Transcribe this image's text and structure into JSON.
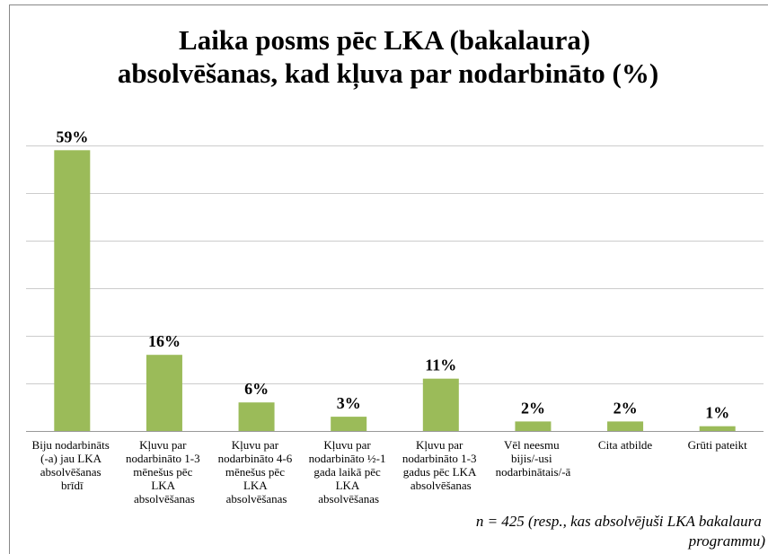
{
  "chart_data": {
    "type": "bar",
    "title": "Laika posms pēc LKA (bakalaura)\nabsolvēšanas, kad kļuva par nodarbināto (%)",
    "categories": [
      "Biju nodarbināts\n(-a) jau LKA\nabsolvēšanas\nbrīdī",
      "Kļuvu par\nnodarbināto 1-3\nmēnešus pēc\nLKA\nabsolvēšanas",
      "Kļuvu par\nnodarbināto 4-6\nmēnešus pēc\nLKA\nabsolvēšanas",
      "Kļuvu par\nnodarbināto ½-1\ngada laikā pēc\nLKA\nabsolvēšanas",
      "Kļuvu par\nnodarbināto 1-3\ngadus pēc LKA\nabsolvēšanas",
      "Vēl neesmu\nbijis/-usi\nnodarbinātais/-ā",
      "Cita atbilde",
      "Grūti pateikt"
    ],
    "values": [
      59,
      16,
      6,
      3,
      11,
      2,
      2,
      1
    ],
    "value_labels": [
      "59%",
      "16%",
      "6%",
      "3%",
      "11%",
      "2%",
      "2%",
      "1%"
    ],
    "color": "#9bbb59",
    "ylim": [
      0,
      60
    ],
    "yticks": [
      0,
      10,
      20,
      30,
      40,
      50,
      60
    ],
    "grid": true,
    "annotation": "n = 425 (resp., kas absolvējuši LKA bakalaura\nprogrammu)"
  }
}
